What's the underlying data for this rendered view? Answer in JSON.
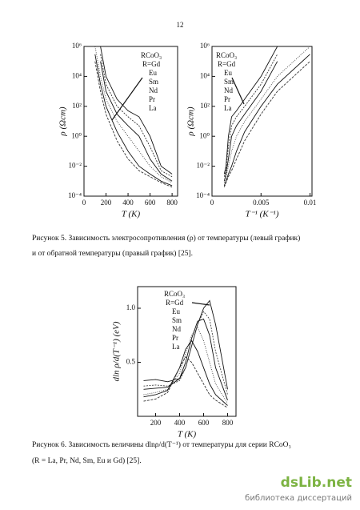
{
  "page_number": "12",
  "captions": [
    [
      "Рисунок 5. Зависимость электросопротивления (ρ) от температуры (левый график)",
      "и от обратной температуры (правый график) [25]."
    ],
    [
      "Рисунок 6. Зависимость величины dlnρ/d(T⁻¹) от температуры для серии RCoO₃",
      "(R = La, Pr, Nd, Sm, Eu и Gd) [25]."
    ]
  ],
  "watermark": {
    "name": "dsLib.net",
    "subtitle": "библиотека диссертаций"
  },
  "chart_data": [
    {
      "type": "line",
      "xlabel": "T (K)",
      "ylabel": "ρ (Ωcm)",
      "legend_title": "RCoO₃",
      "log_y": true,
      "x": [
        100,
        150,
        200,
        300,
        400,
        500,
        600,
        700,
        800
      ],
      "xlim": [
        0,
        850
      ],
      "xticks": [
        0,
        200,
        400,
        600,
        800
      ],
      "ylim": [
        0.0001,
        1000000
      ],
      "yticks": [
        {
          "value": 0.0001,
          "label": "10⁻⁴"
        },
        {
          "value": 0.01,
          "label": "10⁻²"
        },
        {
          "value": 1,
          "label": "10⁰"
        },
        {
          "value": 100,
          "label": "10²"
        },
        {
          "value": 10000,
          "label": "10⁴"
        },
        {
          "value": 1000000,
          "label": "10⁶"
        }
      ],
      "series": [
        {
          "name": "R=Gd",
          "color": "#111",
          "values": [
            null,
            1000000,
            10000,
            300,
            50,
            20,
            1,
            0.01,
            0.003
          ]
        },
        {
          "name": "Eu",
          "color": "#333",
          "values": [
            null,
            300000,
            3000,
            100,
            20,
            5,
            0.2,
            0.005,
            0.002
          ]
        },
        {
          "name": "Sm",
          "color": "#111",
          "values": [
            null,
            100000,
            1000,
            30,
            5,
            1,
            0.03,
            0.003,
            0.001
          ]
        },
        {
          "name": "Nd",
          "color": "#444",
          "values": [
            1000000,
            10000,
            300,
            10,
            1,
            0.1,
            0.01,
            0.002,
            0.0008
          ]
        },
        {
          "name": "Pr",
          "color": "#111",
          "values": [
            300000,
            3000,
            100,
            2,
            0.1,
            0.01,
            0.003,
            0.001,
            0.0005
          ]
        },
        {
          "name": "La",
          "color": "#333",
          "values": [
            100000,
            1000,
            30,
            0.5,
            0.03,
            0.005,
            0.002,
            0.0008,
            0.0004
          ]
        }
      ]
    },
    {
      "type": "line",
      "xlabel": "T⁻¹ (K⁻¹)",
      "ylabel": "ρ (Ωcm)",
      "legend_title": "RCoO₃",
      "log_y": true,
      "x": [
        0.00125,
        0.00143,
        0.00167,
        0.002,
        0.0025,
        0.00333,
        0.005,
        0.00667,
        0.01
      ],
      "xlim": [
        0,
        0.0102
      ],
      "xticks": [
        0,
        0.005,
        0.01
      ],
      "ylim": [
        0.0001,
        1000000
      ],
      "yticks": [
        {
          "value": 0.0001,
          "label": "10⁻⁴"
        },
        {
          "value": 0.01,
          "label": "10⁻²"
        },
        {
          "value": 1,
          "label": "10⁰"
        },
        {
          "value": 100,
          "label": "10²"
        },
        {
          "value": 10000,
          "label": "10⁴"
        },
        {
          "value": 1000000,
          "label": "10⁶"
        }
      ],
      "series": [
        {
          "name": "R=Gd",
          "color": "#111",
          "values": [
            0.003,
            0.01,
            1,
            20,
            50,
            300,
            10000,
            1000000,
            null
          ]
        },
        {
          "name": "Eu",
          "color": "#333",
          "values": [
            0.002,
            0.005,
            0.2,
            5,
            20,
            100,
            3000,
            300000,
            null
          ]
        },
        {
          "name": "Sm",
          "color": "#111",
          "values": [
            0.001,
            0.003,
            0.03,
            1,
            5,
            30,
            1000,
            100000,
            null
          ]
        },
        {
          "name": "Nd",
          "color": "#444",
          "values": [
            0.0008,
            0.002,
            0.01,
            0.1,
            1,
            10,
            300,
            10000,
            1000000
          ]
        },
        {
          "name": "Pr",
          "color": "#111",
          "values": [
            0.0005,
            0.001,
            0.003,
            0.01,
            0.1,
            2,
            100,
            3000,
            300000
          ]
        },
        {
          "name": "La",
          "color": "#333",
          "values": [
            0.0004,
            0.0008,
            0.002,
            0.005,
            0.03,
            0.5,
            30,
            1000,
            100000
          ]
        }
      ]
    },
    {
      "type": "line",
      "xlabel": "T (K)",
      "ylabel": "dln ρ/d(T⁻¹) (eV)",
      "legend_title": "RCoO₃",
      "log_y": false,
      "x": [
        100,
        200,
        300,
        400,
        450,
        500,
        550,
        600,
        650,
        700,
        800
      ],
      "xlim": [
        50,
        870
      ],
      "xticks": [
        200,
        400,
        600,
        800
      ],
      "ylim": [
        0,
        1.2
      ],
      "yticks": [
        0.5,
        {
          "value": 1,
          "label": "1.0"
        }
      ],
      "series": [
        {
          "name": "R=Gd",
          "color": "#111",
          "values": [
            0.33,
            0.34,
            0.32,
            0.35,
            0.45,
            0.65,
            0.85,
            1.0,
            1.07,
            0.85,
            0.25
          ]
        },
        {
          "name": "Eu",
          "color": "#444",
          "values": [
            0.28,
            0.29,
            0.28,
            0.33,
            0.45,
            0.65,
            0.85,
            0.97,
            0.9,
            0.6,
            0.2
          ]
        },
        {
          "name": "Sm",
          "color": "#111",
          "values": [
            0.25,
            0.26,
            0.27,
            0.35,
            0.5,
            0.72,
            0.88,
            0.9,
            0.75,
            0.45,
            0.15
          ]
        },
        {
          "name": "Nd",
          "color": "#444",
          "values": [
            0.2,
            0.22,
            0.25,
            0.4,
            0.58,
            0.75,
            0.82,
            0.7,
            0.5,
            0.3,
            0.12
          ]
        },
        {
          "name": "Pr",
          "color": "#111",
          "values": [
            0.18,
            0.2,
            0.24,
            0.45,
            0.62,
            0.7,
            0.6,
            0.45,
            0.3,
            0.2,
            0.1
          ]
        },
        {
          "name": "La",
          "color": "#333",
          "values": [
            0.14,
            0.16,
            0.22,
            0.45,
            0.55,
            0.5,
            0.4,
            0.3,
            0.2,
            0.15,
            0.08
          ]
        }
      ]
    }
  ]
}
